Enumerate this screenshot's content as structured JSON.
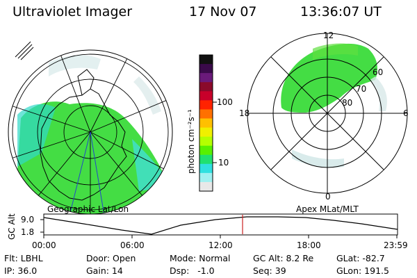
{
  "header": {
    "instrument": "Ultraviolet Imager",
    "date": "17 Nov 07",
    "time": "13:36:07 UT"
  },
  "panels": {
    "left_label": "Geographic Lat/Lon",
    "right_label": "Apex MLat/MLT"
  },
  "colorbar": {
    "unit": "photon cm⁻²s⁻¹",
    "ticks": [
      "100",
      "10"
    ],
    "colors": [
      "#111111",
      "#3a0a4a",
      "#6a1a7a",
      "#8a0a2a",
      "#c8002a",
      "#ff2200",
      "#ff7000",
      "#ffc000",
      "#f0f000",
      "#b4ff00",
      "#58f000",
      "#20e070",
      "#30e0e0",
      "#a0f0f0",
      "#e8e8e8"
    ]
  },
  "mlt_labels": {
    "top": "12",
    "bottom": "0",
    "left": "18",
    "right": "6"
  },
  "mlat_labels": [
    "60",
    "70",
    "80"
  ],
  "altitude_plot": {
    "ylabel": "GC Alt",
    "yticks": [
      "9.0",
      "1.8"
    ],
    "xticks": [
      "00:00",
      "06:00",
      "12:00",
      "18:00",
      "23:59"
    ],
    "current_time_marker_color": "#cc2222"
  },
  "info": {
    "row1": {
      "filter": "Flt: LBHL",
      "door": "Door: Open",
      "mode": "Mode: Normal",
      "gc_alt": "GC Alt: 8.2 Re",
      "glat": "GLat: -82.7"
    },
    "row2": {
      "ip": "IP: 36.0",
      "gain": "Gain: 14",
      "dsp": "Dsp:   -1.0",
      "seq": "Seq: 39",
      "glon": "GLon: 191.5"
    }
  }
}
